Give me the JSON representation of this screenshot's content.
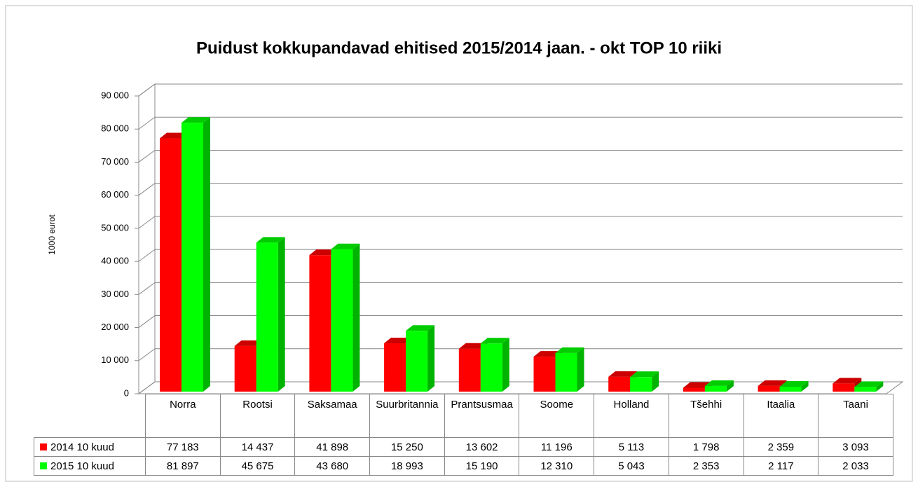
{
  "chart_data": {
    "type": "bar3d",
    "title": "Puidust kokkupandavad ehitised 2015/2014 jaan. - okt TOP 10 riiki",
    "y_label": "1000 eurot",
    "categories": [
      "Norra",
      "Rootsi",
      "Saksamaa",
      "Suurbritannia",
      "Prantsusmaa",
      "Soome",
      "Holland",
      "Tšehhi",
      "Itaalia",
      "Taani"
    ],
    "series": [
      {
        "name": "2014 10 kuud",
        "color": "#ff0000",
        "values": [
          77183,
          14437,
          41898,
          15250,
          13602,
          11196,
          5113,
          1798,
          2359,
          3093
        ],
        "value_labels": [
          "77 183",
          "14 437",
          "41 898",
          "15 250",
          "13 602",
          "11 196",
          "5 113",
          "1 798",
          "2 359",
          "3 093"
        ]
      },
      {
        "name": "2015 10 kuud",
        "color": "#00ff00",
        "values": [
          81897,
          45675,
          43680,
          18993,
          15190,
          12310,
          5043,
          2353,
          2117,
          2033
        ],
        "value_labels": [
          "81 897",
          "45 675",
          "43 680",
          "18 993",
          "15 190",
          "12 310",
          "5 043",
          "2 353",
          "2 117",
          "2 033"
        ]
      }
    ],
    "ylim": [
      0,
      90000
    ],
    "yticks": [
      0,
      {
        "value": 10000,
        "label": "10 000"
      },
      {
        "value": 20000,
        "label": "20 000"
      },
      {
        "value": 30000,
        "label": "30 000"
      },
      {
        "value": 40000,
        "label": "40 000"
      },
      {
        "value": 50000,
        "label": "50 000"
      },
      {
        "value": 60000,
        "label": "60 000"
      },
      {
        "value": 70000,
        "label": "70 000"
      },
      {
        "value": 80000,
        "label": "80 000"
      },
      {
        "value": 90000,
        "label": "90 000"
      }
    ],
    "grid": true
  }
}
